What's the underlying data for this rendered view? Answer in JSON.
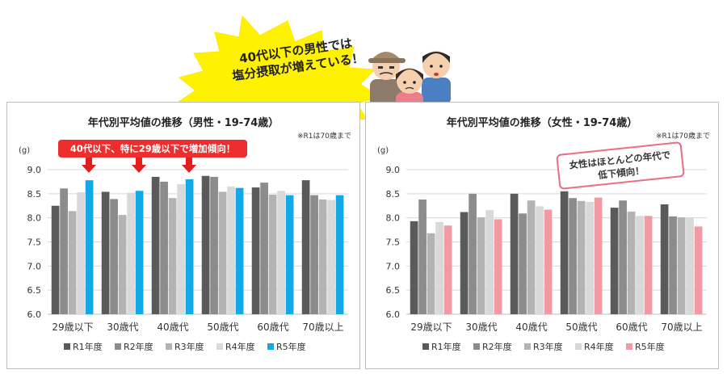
{
  "banner": {
    "line1": "40代以下の男性では",
    "line2": "塩分摂取が増えている！"
  },
  "male_callout": "40代以下、特に29歳以下で増加傾向！",
  "female_note": {
    "line1": "女性はほとんどの年代で",
    "line2": "低下傾向！"
  },
  "colors": {
    "R1": "#5a5a5a",
    "R2": "#8c8c8c",
    "R3": "#b3b3b3",
    "R4": "#d9d9d9",
    "male_R5": "#12a9e6",
    "female_R5": "#f29aa3",
    "callout": "#ee2d2d",
    "arrow": "#e01f1f",
    "burst": "#fff200"
  },
  "chart_data": [
    {
      "type": "bar",
      "title": "年代別平均値の推移（男性・19-74歳）",
      "note": "※R1は70歳まで",
      "ylabel": "(g)",
      "ylim": [
        6.0,
        9.0
      ],
      "yticks": [
        "6.0",
        "6.5",
        "7.0",
        "7.5",
        "8.0",
        "8.5",
        "9.0"
      ],
      "grid": true,
      "legend": "bottom",
      "categories": [
        "29歳以下",
        "30歳代",
        "40歳代",
        "50歳代",
        "60歳代",
        "70歳以上"
      ],
      "series": [
        {
          "name": "R1年度",
          "values": [
            8.25,
            8.54,
            8.85,
            8.87,
            8.63,
            8.78
          ]
        },
        {
          "name": "R2年度",
          "values": [
            8.61,
            8.39,
            8.75,
            8.85,
            8.73,
            8.47
          ]
        },
        {
          "name": "R3年度",
          "values": [
            8.14,
            8.06,
            8.41,
            8.54,
            8.48,
            8.38
          ]
        },
        {
          "name": "R4年度",
          "values": [
            8.53,
            8.52,
            8.7,
            8.65,
            8.56,
            8.37
          ]
        },
        {
          "name": "R5年度",
          "values": [
            8.78,
            8.56,
            8.8,
            8.62,
            8.47,
            8.47
          ]
        }
      ]
    },
    {
      "type": "bar",
      "title": "年代別平均値の推移（女性・19-74歳）",
      "note": "※R1は70歳まで",
      "ylabel": "(g)",
      "ylim": [
        6.0,
        9.0
      ],
      "yticks": [
        "6.0",
        "6.5",
        "7.0",
        "7.5",
        "8.0",
        "8.5",
        "9.0"
      ],
      "grid": true,
      "legend": "bottom",
      "categories": [
        "29歳以下",
        "30歳代",
        "40歳代",
        "50歳代",
        "60歳代",
        "70歳以上"
      ],
      "series": [
        {
          "name": "R1年度",
          "values": [
            7.93,
            8.12,
            8.5,
            8.55,
            8.21,
            8.28
          ]
        },
        {
          "name": "R2年度",
          "values": [
            8.38,
            8.5,
            8.09,
            8.41,
            8.36,
            8.03
          ]
        },
        {
          "name": "R3年度",
          "values": [
            7.68,
            8.01,
            8.36,
            8.35,
            8.13,
            8.01
          ]
        },
        {
          "name": "R4年度",
          "values": [
            7.91,
            8.16,
            8.24,
            8.33,
            8.04,
            8.01
          ]
        },
        {
          "name": "R5年度",
          "values": [
            7.84,
            7.97,
            8.17,
            8.42,
            8.04,
            7.82
          ]
        }
      ]
    }
  ]
}
